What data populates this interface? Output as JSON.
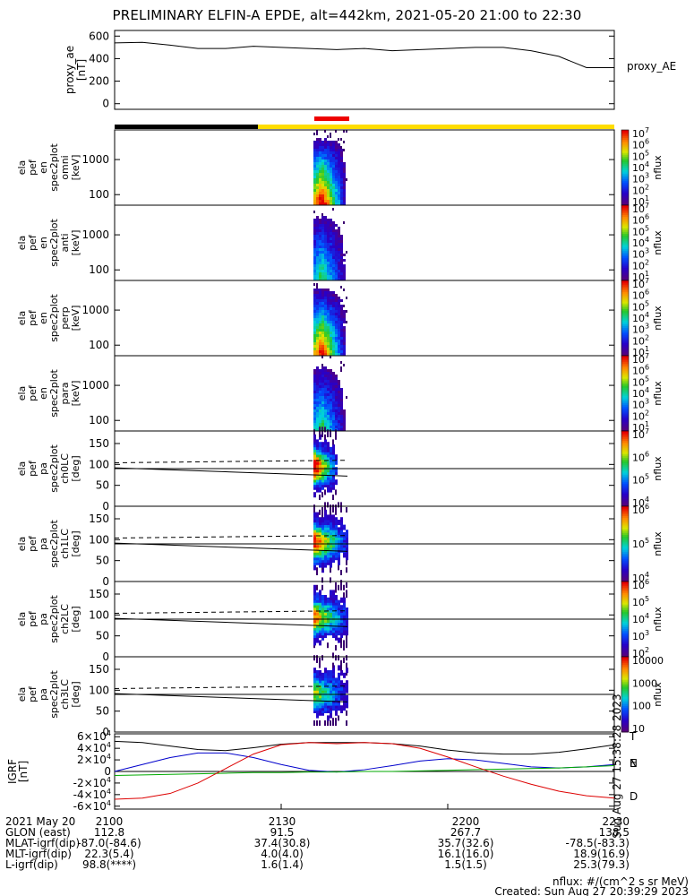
{
  "title": "PRELIMINARY ELFIN-A EPDE, alt=442km, 2021-05-20 21:00 to 22:30",
  "chart_data": [
    {
      "type": "line",
      "ylabel": "proxy_ae\n[nT]",
      "legend": "proxy_AE",
      "yticks": [
        "0",
        "200",
        "400",
        "600"
      ],
      "ylim": [
        -50,
        650
      ],
      "x_minutes": [
        0,
        5,
        10,
        15,
        20,
        25,
        30,
        35,
        40,
        45,
        50,
        55,
        60,
        65,
        70,
        75,
        80,
        85,
        90
      ],
      "values": [
        540,
        545,
        520,
        490,
        490,
        510,
        500,
        490,
        480,
        490,
        470,
        480,
        490,
        500,
        500,
        470,
        420,
        320,
        320
      ]
    },
    {
      "type": "heatmap",
      "ylabel": "ela\npef\nen\nspec2plot\nomni\n[keV]",
      "yscale": "log",
      "yticks": [
        "100",
        "1000"
      ],
      "zlabel": "nflux",
      "ztick_labels": [
        "10^1",
        "10^2",
        "10^3",
        "10^4",
        "10^5",
        "10^6",
        "10^7"
      ]
    },
    {
      "type": "heatmap",
      "ylabel": "ela\npef\nen\nspec2plot\nanti\n[keV]",
      "yscale": "log",
      "yticks": [
        "100",
        "1000"
      ],
      "zlabel": "nflux",
      "ztick_labels": [
        "10^1",
        "10^2",
        "10^3",
        "10^4",
        "10^5",
        "10^6",
        "10^7"
      ]
    },
    {
      "type": "heatmap",
      "ylabel": "ela\npef\nen\nspec2plot\nperp\n[keV]",
      "yscale": "log",
      "yticks": [
        "100",
        "1000"
      ],
      "zlabel": "nflux",
      "ztick_labels": [
        "10^1",
        "10^2",
        "10^3",
        "10^4",
        "10^5",
        "10^6",
        "10^7"
      ]
    },
    {
      "type": "heatmap",
      "ylabel": "ela\npef\nen\nspec2plot\npara\n[keV]",
      "yscale": "log",
      "yticks": [
        "100",
        "1000"
      ],
      "zlabel": "nflux",
      "ztick_labels": [
        "10^1",
        "10^2",
        "10^3",
        "10^4",
        "10^5",
        "10^6",
        "10^7"
      ]
    },
    {
      "type": "heatmap",
      "ylabel": "ela\npef\npa\nspec2plot\nch0LC\n[deg]",
      "yticks": [
        "0",
        "50",
        "100",
        "150"
      ],
      "zlabel": "nflux",
      "ztick_labels": [
        "10^4",
        "10^5",
        "10^6",
        "10^7"
      ]
    },
    {
      "type": "heatmap",
      "ylabel": "ela\npef\npa\nspec2plot\nch1LC\n[deg]",
      "yticks": [
        "0",
        "50",
        "100",
        "150"
      ],
      "zlabel": "nflux",
      "ztick_labels": [
        "10^4",
        "10^5",
        "10^6"
      ]
    },
    {
      "type": "heatmap",
      "ylabel": "ela\npef\npa\nspec2plot\nch2LC\n[deg]",
      "yticks": [
        "0",
        "50",
        "100",
        "150"
      ],
      "zlabel": "nflux",
      "ztick_labels": [
        "10^2",
        "10^3",
        "10^4",
        "10^5",
        "10^6"
      ]
    },
    {
      "type": "heatmap",
      "ylabel": "ela\npef\npa\nspec2plot\nch3LC\n[deg]",
      "yticks": [
        "0",
        "50",
        "100",
        "150"
      ],
      "zlabel": "nflux",
      "ztick_labels": [
        "10",
        "100",
        "1000",
        "10000"
      ]
    },
    {
      "type": "line",
      "ylabel": "IGRF\n[nT]",
      "yticks": [
        "-6×10^4",
        "-4×10^4",
        "-2×10^4",
        "0",
        "2×10^4",
        "4×10^4",
        "6×10^4"
      ],
      "ylim": [
        -65000,
        65000
      ],
      "legend": [
        "T",
        "N",
        "E",
        "D"
      ],
      "x_minutes": [
        0,
        5,
        10,
        15,
        20,
        25,
        30,
        35,
        40,
        45,
        50,
        55,
        60,
        65,
        70,
        75,
        80,
        85,
        90
      ],
      "series": [
        {
          "name": "T",
          "color": "#000000",
          "values": [
            52000,
            50000,
            44000,
            38000,
            36000,
            41000,
            47000,
            50000,
            50000,
            50000,
            48000,
            44000,
            37000,
            32000,
            30000,
            30000,
            33000,
            39000,
            46000
          ]
        },
        {
          "name": "N",
          "color": "#0000cc",
          "values": [
            0,
            12000,
            24000,
            32000,
            32000,
            24000,
            12000,
            2000,
            -1000,
            3000,
            10000,
            18000,
            22000,
            20000,
            14000,
            8000,
            6000,
            8000,
            12000
          ]
        },
        {
          "name": "E",
          "color": "#00aa00",
          "values": [
            -7000,
            -6000,
            -5000,
            -4000,
            -3000,
            -2000,
            -2000,
            -1000,
            -1000,
            0,
            0,
            1000,
            2000,
            3000,
            4000,
            5000,
            6000,
            8000,
            10000
          ]
        },
        {
          "name": "D",
          "color": "#dd0000",
          "values": [
            -48000,
            -46000,
            -38000,
            -20000,
            5000,
            30000,
            46000,
            50000,
            48000,
            50000,
            48000,
            40000,
            25000,
            8000,
            -8000,
            -22000,
            -34000,
            -42000,
            -46000
          ]
        }
      ]
    }
  ],
  "xaxis": {
    "ticks": [
      "2100",
      "2130",
      "2200",
      "2230"
    ],
    "rows": [
      {
        "label": "2021 May 20",
        "values": [
          "2100",
          "2130",
          "2200",
          "2230"
        ]
      },
      {
        "label": "GLON (east)",
        "values": [
          "112.8",
          "91.5",
          "267.7",
          "138.5"
        ]
      },
      {
        "label": "MLAT-igrf(dip)",
        "values": [
          "-87.0(-84.6)",
          "37.4(30.8)",
          "35.7(32.6)",
          "-78.5(-83.3)"
        ]
      },
      {
        "label": "MLT-igrf(dip)",
        "values": [
          "22.3(5.4)",
          "4.0(4.0)",
          "16.1(16.0)",
          "18.9(16.9)"
        ]
      },
      {
        "label": "L-igrf(dip)",
        "values": [
          "98.8(****)",
          "1.6(1.4)",
          "1.5(1.5)",
          "25.3(79.3)"
        ]
      }
    ]
  },
  "footer": {
    "units": "nflux: #/(cm^2 s sr MeV)",
    "created": "Created: Sun Aug 27 20:39:29 2023",
    "side_stamp": "Sun Aug 27 15:38:28 2023"
  },
  "colors": {
    "bar_dark": "#000000",
    "bar_light": "#ffdd00",
    "bar_marker": "#ee0000"
  }
}
